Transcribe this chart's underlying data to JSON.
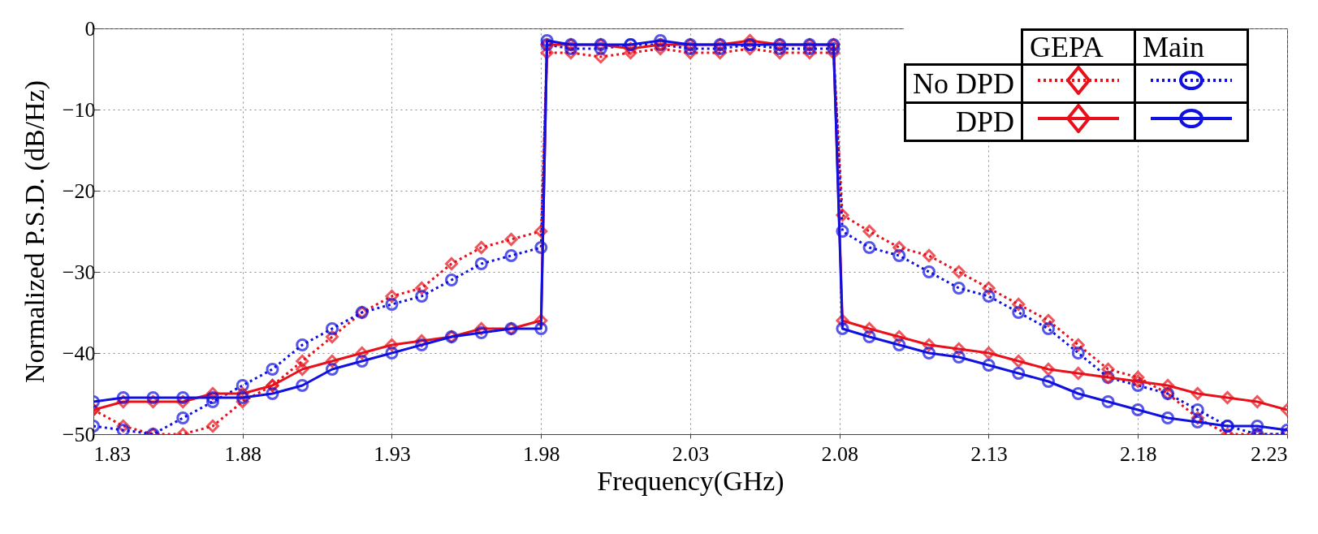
{
  "chart_data": {
    "type": "line",
    "xlabel": "Frequency(GHz)",
    "ylabel": "Normalized P.S.D. (dB/Hz)",
    "xlim": [
      1.83,
      2.23
    ],
    "ylim": [
      -50,
      0
    ],
    "xticks": [
      1.83,
      1.88,
      1.93,
      1.98,
      2.03,
      2.08,
      2.13,
      2.18,
      2.23
    ],
    "yticks": [
      -50,
      -40,
      -30,
      -20,
      -10,
      0
    ],
    "grid": true,
    "annotations": [
      "GEPA",
      "Main",
      "No DPD",
      "DPD"
    ],
    "series": [
      {
        "color": "#e8101a",
        "line_style": "dotted",
        "marker": "diamond",
        "x": [
          1.83,
          1.84,
          1.85,
          1.86,
          1.87,
          1.88,
          1.89,
          1.9,
          1.91,
          1.92,
          1.93,
          1.94,
          1.95,
          1.96,
          1.97,
          1.98,
          1.982,
          1.99,
          2.0,
          2.01,
          2.02,
          2.03,
          2.04,
          2.05,
          2.06,
          2.07,
          2.078,
          2.081,
          2.09,
          2.1,
          2.11,
          2.12,
          2.13,
          2.14,
          2.15,
          2.16,
          2.17,
          2.18,
          2.19,
          2.2,
          2.21,
          2.22,
          2.23
        ],
        "values": [
          -47,
          -49,
          -50,
          -50,
          -49,
          -46,
          -44,
          -41,
          -38,
          -35,
          -33,
          -32,
          -29,
          -27,
          -26,
          -25,
          -3,
          -3,
          -3.5,
          -3,
          -2.5,
          -3,
          -3,
          -2.5,
          -3,
          -3,
          -3,
          -23,
          -25,
          -27,
          -28,
          -30,
          -32,
          -34,
          -36,
          -39,
          -42,
          -43,
          -45,
          -48,
          -50,
          -50,
          -50
        ]
      },
      {
        "color": "#1010e0",
        "line_style": "dotted",
        "marker": "circle",
        "x": [
          1.83,
          1.84,
          1.85,
          1.86,
          1.87,
          1.88,
          1.89,
          1.9,
          1.91,
          1.92,
          1.93,
          1.94,
          1.95,
          1.96,
          1.97,
          1.98,
          1.982,
          1.99,
          2.0,
          2.01,
          2.02,
          2.03,
          2.04,
          2.05,
          2.06,
          2.07,
          2.078,
          2.081,
          2.09,
          2.1,
          2.11,
          2.12,
          2.13,
          2.14,
          2.15,
          2.16,
          2.17,
          2.18,
          2.19,
          2.2,
          2.21,
          2.22,
          2.23
        ],
        "values": [
          -49,
          -49.5,
          -50,
          -48,
          -46,
          -44,
          -42,
          -39,
          -37,
          -35,
          -34,
          -33,
          -31,
          -29,
          -28,
          -27,
          -2,
          -2.5,
          -2.5,
          -2,
          -2,
          -2.5,
          -2.5,
          -2,
          -2.5,
          -2.5,
          -2.5,
          -25,
          -27,
          -28,
          -30,
          -32,
          -33,
          -35,
          -37,
          -40,
          -43,
          -44,
          -45,
          -47,
          -49,
          -50,
          -50
        ]
      },
      {
        "color": "#e8101a",
        "line_style": "solid",
        "marker": "diamond",
        "x": [
          1.83,
          1.84,
          1.85,
          1.86,
          1.87,
          1.88,
          1.89,
          1.9,
          1.91,
          1.92,
          1.93,
          1.94,
          1.95,
          1.96,
          1.97,
          1.98,
          1.982,
          1.99,
          2.0,
          2.01,
          2.02,
          2.03,
          2.04,
          2.05,
          2.06,
          2.07,
          2.078,
          2.081,
          2.09,
          2.1,
          2.11,
          2.12,
          2.13,
          2.14,
          2.15,
          2.16,
          2.17,
          2.18,
          2.19,
          2.2,
          2.21,
          2.22,
          2.23
        ],
        "values": [
          -47,
          -46,
          -46,
          -46,
          -45,
          -45,
          -44,
          -42,
          -41,
          -40,
          -39,
          -38.5,
          -38,
          -37,
          -37,
          -36,
          -2,
          -2,
          -2,
          -2.5,
          -2,
          -2,
          -2,
          -1.5,
          -2,
          -2,
          -2,
          -36,
          -37,
          -38,
          -39,
          -39.5,
          -40,
          -41,
          -42,
          -42.5,
          -43,
          -43.5,
          -44,
          -45,
          -45.5,
          -46,
          -47
        ]
      },
      {
        "color": "#1010e0",
        "line_style": "solid",
        "marker": "circle",
        "x": [
          1.83,
          1.84,
          1.85,
          1.86,
          1.87,
          1.88,
          1.89,
          1.9,
          1.91,
          1.92,
          1.93,
          1.94,
          1.95,
          1.96,
          1.97,
          1.98,
          1.982,
          1.99,
          2.0,
          2.01,
          2.02,
          2.03,
          2.04,
          2.05,
          2.06,
          2.07,
          2.078,
          2.081,
          2.09,
          2.1,
          2.11,
          2.12,
          2.13,
          2.14,
          2.15,
          2.16,
          2.17,
          2.18,
          2.19,
          2.2,
          2.21,
          2.22,
          2.23
        ],
        "values": [
          -46,
          -45.5,
          -45.5,
          -45.5,
          -45.5,
          -45.5,
          -45,
          -44,
          -42,
          -41,
          -40,
          -39,
          -38,
          -37.5,
          -37,
          -37,
          -1.5,
          -2,
          -2,
          -2,
          -1.5,
          -2,
          -2,
          -2,
          -2,
          -2,
          -2,
          -37,
          -38,
          -39,
          -40,
          -40.5,
          -41.5,
          -42.5,
          -43.5,
          -45,
          -46,
          -47,
          -48,
          -48.5,
          -49,
          -49,
          -49.5
        ]
      }
    ]
  }
}
